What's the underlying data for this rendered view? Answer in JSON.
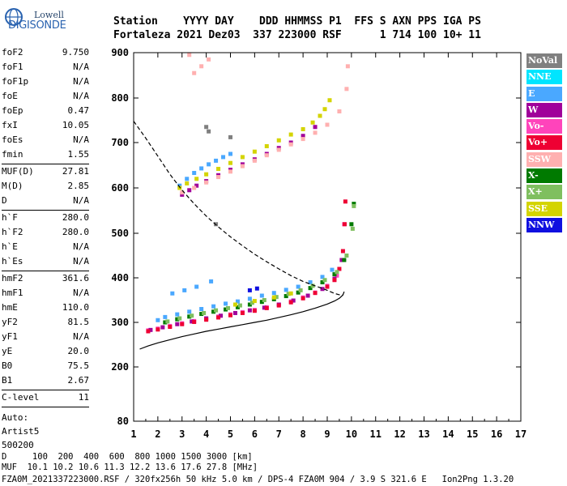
{
  "logo": {
    "line1": "Lowell",
    "line2": "DIGISONDE"
  },
  "header": {
    "line1": "Station    YYYY DAY    DDD HHMMSS P1  FFS S AXN PPS IGA PS",
    "line2": "Fortaleza 2021 Dez03  337 223000 RSF      1 714 100 10+ 11"
  },
  "params": {
    "group1": [
      {
        "name": "foF2",
        "value": "9.750"
      },
      {
        "name": "foF1",
        "value": "N/A"
      },
      {
        "name": "foF1p",
        "value": "N/A"
      },
      {
        "name": "foE",
        "value": "N/A"
      },
      {
        "name": "foEp",
        "value": "0.47"
      },
      {
        "name": "fxI",
        "value": "10.05"
      },
      {
        "name": "foEs",
        "value": "N/A"
      },
      {
        "name": "fmin",
        "value": "1.55"
      }
    ],
    "group2": [
      {
        "name": "MUF(D)",
        "value": "27.81"
      },
      {
        "name": "M(D)",
        "value": "2.85"
      },
      {
        "name": "D",
        "value": "N/A"
      }
    ],
    "group3": [
      {
        "name": "h`F",
        "value": "280.0"
      },
      {
        "name": "h`F2",
        "value": "280.0"
      },
      {
        "name": "h`E",
        "value": "N/A"
      },
      {
        "name": "h`Es",
        "value": "N/A"
      }
    ],
    "group4": [
      {
        "name": "hmF2",
        "value": "361.6"
      },
      {
        "name": "hmF1",
        "value": "N/A"
      },
      {
        "name": "hmE",
        "value": "110.0"
      },
      {
        "name": "yF2",
        "value": "81.5"
      },
      {
        "name": "yF1",
        "value": "N/A"
      },
      {
        "name": "yE",
        "value": "20.0"
      },
      {
        "name": "B0",
        "value": "75.5"
      },
      {
        "name": "B1",
        "value": "2.67"
      }
    ],
    "group5": [
      {
        "name": "C-level",
        "value": "11"
      }
    ],
    "auto": [
      "Auto:",
      "Artist5",
      "500200"
    ]
  },
  "legend": [
    {
      "label": "NoVal",
      "color": "#808080"
    },
    {
      "label": "NNE",
      "color": "#00e5ff"
    },
    {
      "label": "E",
      "color": "#4aa8ff"
    },
    {
      "label": "W",
      "color": "#a0009a"
    },
    {
      "label": "Vo-",
      "color": "#ff44bb"
    },
    {
      "label": "Vo+",
      "color": "#ee0033"
    },
    {
      "label": "SSW",
      "color": "#ffb0b0"
    },
    {
      "label": "X-",
      "color": "#007a00"
    },
    {
      "label": "X+",
      "color": "#7fbf5f"
    },
    {
      "label": "SSE",
      "color": "#d4d400"
    },
    {
      "label": "NNW",
      "color": "#1010e0"
    }
  ],
  "footer": {
    "line1": "D     100  200  400  600  800 1000 1500 3000 [km]",
    "line2": "MUF  10.1 10.2 10.6 11.3 12.2 13.6 17.6 27.8 [MHz]",
    "line3": "FZA0M_2021337223000.RSF / 320fx256h 50 kHz 5.0 km / DPS-4 FZA0M 904 / 3.9 S 321.6 E   Ion2Png 1.3.20"
  },
  "chart_data": {
    "type": "scatter",
    "xlim": [
      1,
      17
    ],
    "ylim": [
      80,
      900
    ],
    "xticks": [
      "1",
      "2",
      "3",
      "4",
      "5",
      "6",
      "7",
      "8",
      "9",
      "10",
      "11",
      "12",
      "13",
      "14",
      "15",
      "16",
      "17"
    ],
    "yticks": [
      "80",
      "200",
      "300",
      "400",
      "500",
      "600",
      "700",
      "800",
      "900"
    ],
    "grid": false,
    "series": [
      {
        "name": "E",
        "color": "#4aa8ff",
        "points": [
          [
            2.0,
            305
          ],
          [
            2.3,
            312
          ],
          [
            2.8,
            318
          ],
          [
            3.3,
            324
          ],
          [
            3.8,
            330
          ],
          [
            4.3,
            336
          ],
          [
            4.8,
            342
          ],
          [
            5.3,
            347
          ],
          [
            5.8,
            353
          ],
          [
            6.3,
            360
          ],
          [
            6.8,
            366
          ],
          [
            7.3,
            373
          ],
          [
            7.8,
            380
          ],
          [
            8.3,
            390
          ],
          [
            8.8,
            402
          ],
          [
            9.2,
            418
          ],
          [
            2.6,
            365
          ],
          [
            3.1,
            372
          ],
          [
            3.6,
            380
          ],
          [
            4.2,
            392
          ],
          [
            2.9,
            605
          ],
          [
            3.2,
            620
          ],
          [
            3.5,
            633
          ],
          [
            3.8,
            643
          ],
          [
            4.1,
            652
          ],
          [
            4.4,
            660
          ],
          [
            4.7,
            668
          ],
          [
            5.0,
            675
          ]
        ]
      },
      {
        "name": "Vo-",
        "color": "#ff44bb",
        "points": [
          [
            1.6,
            282
          ],
          [
            2.0,
            286
          ],
          [
            2.5,
            292
          ],
          [
            3.0,
            298
          ],
          [
            3.5,
            303
          ],
          [
            4.0,
            308
          ],
          [
            4.5,
            313
          ],
          [
            5.0,
            318
          ],
          [
            5.5,
            323
          ],
          [
            6.0,
            328
          ],
          [
            6.5,
            334
          ],
          [
            7.0,
            340
          ],
          [
            7.5,
            347
          ],
          [
            8.0,
            356
          ],
          [
            8.5,
            367
          ],
          [
            9.0,
            382
          ],
          [
            9.4,
            405
          ],
          [
            9.6,
            440
          ],
          [
            9.7,
            520
          ]
        ]
      },
      {
        "name": "W",
        "color": "#a0009a",
        "points": [
          [
            1.7,
            283
          ],
          [
            2.2,
            289
          ],
          [
            2.8,
            296
          ],
          [
            3.4,
            302
          ],
          [
            4.0,
            309
          ],
          [
            4.6,
            315
          ],
          [
            5.2,
            321
          ],
          [
            5.8,
            327
          ],
          [
            6.4,
            333
          ],
          [
            7.0,
            340
          ],
          [
            7.6,
            349
          ],
          [
            8.2,
            360
          ],
          [
            8.8,
            375
          ],
          [
            9.3,
            398
          ],
          [
            9.6,
            440
          ],
          [
            3.0,
            585
          ],
          [
            3.3,
            595
          ],
          [
            3.6,
            605
          ],
          [
            4.0,
            615
          ],
          [
            4.5,
            628
          ],
          [
            5.0,
            640
          ],
          [
            5.5,
            652
          ],
          [
            6.0,
            663
          ],
          [
            6.5,
            675
          ],
          [
            7.0,
            688
          ],
          [
            7.5,
            700
          ],
          [
            8.0,
            715
          ],
          [
            8.5,
            735
          ]
        ]
      },
      {
        "name": "Vo+",
        "color": "#ee0033",
        "points": [
          [
            1.6,
            280
          ],
          [
            2.0,
            284
          ],
          [
            2.5,
            290
          ],
          [
            3.0,
            296
          ],
          [
            3.5,
            301
          ],
          [
            4.0,
            306
          ],
          [
            4.5,
            311
          ],
          [
            5.0,
            316
          ],
          [
            5.5,
            321
          ],
          [
            6.0,
            326
          ],
          [
            6.5,
            332
          ],
          [
            7.0,
            338
          ],
          [
            7.5,
            345
          ],
          [
            8.0,
            354
          ],
          [
            8.5,
            366
          ],
          [
            9.0,
            380
          ],
          [
            9.3,
            395
          ],
          [
            9.5,
            420
          ],
          [
            9.65,
            460
          ],
          [
            9.72,
            520
          ],
          [
            9.75,
            570
          ]
        ]
      },
      {
        "name": "SSW",
        "color": "#ffb0b0",
        "points": [
          [
            3.0,
            590
          ],
          [
            3.5,
            600
          ],
          [
            4.0,
            612
          ],
          [
            4.5,
            624
          ],
          [
            5.0,
            636
          ],
          [
            5.5,
            648
          ],
          [
            6.0,
            660
          ],
          [
            6.5,
            672
          ],
          [
            7.0,
            684
          ],
          [
            7.5,
            696
          ],
          [
            8.0,
            708
          ],
          [
            8.5,
            722
          ],
          [
            9.0,
            740
          ],
          [
            9.5,
            770
          ],
          [
            9.8,
            820
          ],
          [
            9.85,
            870
          ],
          [
            3.5,
            855
          ],
          [
            3.8,
            870
          ],
          [
            4.1,
            885
          ],
          [
            3.3,
            895
          ]
        ]
      },
      {
        "name": "X-",
        "color": "#007a00",
        "points": [
          [
            2.3,
            300
          ],
          [
            2.8,
            307
          ],
          [
            3.3,
            313
          ],
          [
            3.8,
            319
          ],
          [
            4.3,
            324
          ],
          [
            4.8,
            329
          ],
          [
            5.3,
            334
          ],
          [
            5.8,
            340
          ],
          [
            6.3,
            346
          ],
          [
            6.8,
            352
          ],
          [
            7.3,
            359
          ],
          [
            7.8,
            367
          ],
          [
            8.3,
            377
          ],
          [
            8.8,
            390
          ],
          [
            9.3,
            408
          ],
          [
            9.7,
            440
          ],
          [
            10.0,
            520
          ],
          [
            10.1,
            565
          ]
        ]
      },
      {
        "name": "X+",
        "color": "#7fbf5f",
        "points": [
          [
            2.4,
            302
          ],
          [
            2.9,
            309
          ],
          [
            3.4,
            315
          ],
          [
            3.9,
            321
          ],
          [
            4.4,
            327
          ],
          [
            4.9,
            332
          ],
          [
            5.4,
            338
          ],
          [
            5.9,
            344
          ],
          [
            6.4,
            350
          ],
          [
            6.9,
            357
          ],
          [
            7.4,
            364
          ],
          [
            7.9,
            372
          ],
          [
            8.4,
            382
          ],
          [
            8.9,
            395
          ],
          [
            9.4,
            413
          ],
          [
            9.8,
            450
          ],
          [
            10.05,
            510
          ],
          [
            10.1,
            560
          ]
        ]
      },
      {
        "name": "SSE",
        "color": "#d4d400",
        "points": [
          [
            2.9,
            600
          ],
          [
            3.2,
            610
          ],
          [
            3.6,
            620
          ],
          [
            4.0,
            630
          ],
          [
            4.5,
            642
          ],
          [
            5.0,
            655
          ],
          [
            5.5,
            668
          ],
          [
            6.0,
            680
          ],
          [
            6.5,
            692
          ],
          [
            7.0,
            705
          ],
          [
            7.5,
            718
          ],
          [
            8.0,
            730
          ],
          [
            8.4,
            745
          ],
          [
            8.7,
            760
          ],
          [
            8.9,
            775
          ],
          [
            9.1,
            795
          ],
          [
            5.2,
            340
          ],
          [
            6.0,
            348
          ],
          [
            6.8,
            356
          ],
          [
            7.5,
            365
          ]
        ]
      },
      {
        "name": "NNW",
        "color": "#1010e0",
        "points": [
          [
            5.8,
            372
          ],
          [
            6.1,
            376
          ]
        ]
      },
      {
        "name": "NoVal",
        "color": "#808080",
        "points": [
          [
            4.0,
            735
          ],
          [
            4.1,
            725
          ],
          [
            5.0,
            712
          ],
          [
            4.4,
            520
          ]
        ]
      }
    ],
    "curves": [
      {
        "style": "solid",
        "points": [
          [
            1.25,
            240
          ],
          [
            1.6,
            247
          ],
          [
            2.0,
            254
          ],
          [
            2.5,
            261
          ],
          [
            3.0,
            268
          ],
          [
            3.5,
            274
          ],
          [
            4.0,
            280
          ],
          [
            4.5,
            285
          ],
          [
            5.0,
            290
          ],
          [
            5.5,
            295
          ],
          [
            6.0,
            300
          ],
          [
            6.5,
            305
          ],
          [
            7.0,
            311
          ],
          [
            7.5,
            317
          ],
          [
            8.0,
            324
          ],
          [
            8.5,
            332
          ],
          [
            9.0,
            341
          ],
          [
            9.3,
            348
          ],
          [
            9.5,
            354
          ],
          [
            9.65,
            361.6
          ],
          [
            9.7,
            369
          ]
        ]
      },
      {
        "style": "dashed",
        "points": [
          [
            1.0,
            748
          ],
          [
            1.5,
            710
          ],
          [
            2.0,
            670
          ],
          [
            2.5,
            630
          ],
          [
            3.0,
            595
          ],
          [
            3.5,
            565
          ],
          [
            4.0,
            538
          ],
          [
            4.5,
            514
          ],
          [
            5.0,
            492
          ],
          [
            5.5,
            472
          ],
          [
            6.0,
            453
          ],
          [
            6.5,
            436
          ],
          [
            7.0,
            420
          ],
          [
            7.5,
            405
          ],
          [
            8.0,
            392
          ],
          [
            8.5,
            382
          ],
          [
            9.0,
            372
          ],
          [
            9.3,
            365
          ],
          [
            9.5,
            362
          ],
          [
            9.65,
            361.6
          ]
        ]
      }
    ]
  }
}
